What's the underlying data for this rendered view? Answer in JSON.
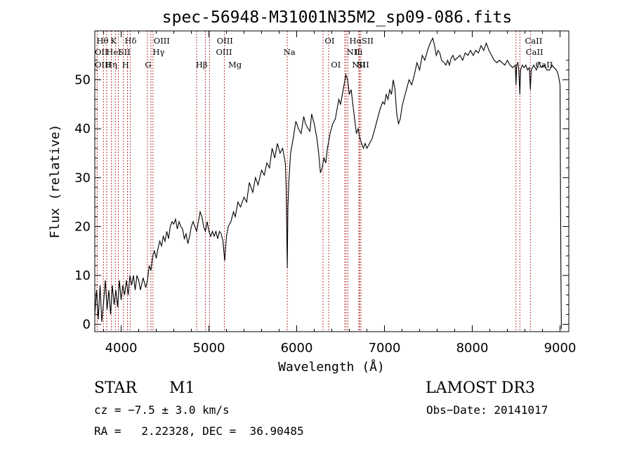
{
  "chart_data": {
    "type": "line",
    "title": "spec-56948-M31001N35M2_sp09-086.fits",
    "xlabel": "Wavelength (Å)",
    "ylabel": "Flux (relative)",
    "xlim": [
      3700,
      9100
    ],
    "ylim": [
      -1.5,
      60
    ],
    "xticks": [
      4000,
      5000,
      6000,
      7000,
      8000,
      9000
    ],
    "yticks": [
      0,
      10,
      20,
      30,
      40,
      50
    ],
    "spectrum": {
      "name": "flux",
      "points": [
        [
          3700,
          2
        ],
        [
          3720,
          7
        ],
        [
          3740,
          1
        ],
        [
          3760,
          8
        ],
        [
          3780,
          0.5
        ],
        [
          3800,
          4.5
        ],
        [
          3820,
          9
        ],
        [
          3840,
          3
        ],
        [
          3860,
          7
        ],
        [
          3880,
          2
        ],
        [
          3900,
          8
        ],
        [
          3920,
          4
        ],
        [
          3940,
          7
        ],
        [
          3960,
          3.5
        ],
        [
          3980,
          9
        ],
        [
          4000,
          5
        ],
        [
          4020,
          8
        ],
        [
          4040,
          6
        ],
        [
          4060,
          9
        ],
        [
          4080,
          6
        ],
        [
          4100,
          10
        ],
        [
          4120,
          8
        ],
        [
          4140,
          10
        ],
        [
          4160,
          7
        ],
        [
          4180,
          10
        ],
        [
          4200,
          9
        ],
        [
          4220,
          7
        ],
        [
          4250,
          9.5
        ],
        [
          4280,
          7.5
        ],
        [
          4300,
          9
        ],
        [
          4320,
          12
        ],
        [
          4340,
          11
        ],
        [
          4360,
          14
        ],
        [
          4380,
          15
        ],
        [
          4400,
          13.5
        ],
        [
          4420,
          15.5
        ],
        [
          4440,
          17
        ],
        [
          4460,
          16
        ],
        [
          4480,
          18
        ],
        [
          4500,
          17
        ],
        [
          4520,
          19
        ],
        [
          4540,
          17.5
        ],
        [
          4560,
          20
        ],
        [
          4580,
          21
        ],
        [
          4600,
          20.5
        ],
        [
          4620,
          21.5
        ],
        [
          4640,
          19.5
        ],
        [
          4660,
          21
        ],
        [
          4680,
          20
        ],
        [
          4700,
          19.5
        ],
        [
          4720,
          17.5
        ],
        [
          4740,
          18.5
        ],
        [
          4760,
          16.5
        ],
        [
          4780,
          18
        ],
        [
          4800,
          20
        ],
        [
          4820,
          21
        ],
        [
          4840,
          20
        ],
        [
          4860,
          19
        ],
        [
          4880,
          21
        ],
        [
          4900,
          23
        ],
        [
          4920,
          22
        ],
        [
          4940,
          20
        ],
        [
          4960,
          19
        ],
        [
          4980,
          21
        ],
        [
          5000,
          19
        ],
        [
          5020,
          18
        ],
        [
          5040,
          19
        ],
        [
          5060,
          18
        ],
        [
          5080,
          19
        ],
        [
          5100,
          17.5
        ],
        [
          5120,
          19
        ],
        [
          5140,
          18.5
        ],
        [
          5160,
          17
        ],
        [
          5180,
          13
        ],
        [
          5200,
          18
        ],
        [
          5220,
          20
        ],
        [
          5250,
          21
        ],
        [
          5280,
          23
        ],
        [
          5300,
          22
        ],
        [
          5330,
          25
        ],
        [
          5360,
          24
        ],
        [
          5400,
          26
        ],
        [
          5430,
          25
        ],
        [
          5460,
          29
        ],
        [
          5500,
          27
        ],
        [
          5530,
          30
        ],
        [
          5560,
          28.5
        ],
        [
          5600,
          31.5
        ],
        [
          5630,
          30.5
        ],
        [
          5660,
          33
        ],
        [
          5690,
          32
        ],
        [
          5720,
          36
        ],
        [
          5750,
          34
        ],
        [
          5780,
          37
        ],
        [
          5810,
          35
        ],
        [
          5840,
          36
        ],
        [
          5870,
          33
        ],
        [
          5880,
          28
        ],
        [
          5893,
          11.5
        ],
        [
          5900,
          24
        ],
        [
          5910,
          29
        ],
        [
          5930,
          35
        ],
        [
          5960,
          38
        ],
        [
          5990,
          41.5
        ],
        [
          6020,
          40
        ],
        [
          6050,
          39
        ],
        [
          6080,
          42.5
        ],
        [
          6100,
          41
        ],
        [
          6130,
          40
        ],
        [
          6150,
          39.5
        ],
        [
          6170,
          43
        ],
        [
          6200,
          41
        ],
        [
          6230,
          38
        ],
        [
          6250,
          35
        ],
        [
          6270,
          31
        ],
        [
          6290,
          32
        ],
        [
          6310,
          34
        ],
        [
          6330,
          33
        ],
        [
          6350,
          36
        ],
        [
          6380,
          39
        ],
        [
          6410,
          41
        ],
        [
          6440,
          42
        ],
        [
          6460,
          44
        ],
        [
          6480,
          46
        ],
        [
          6500,
          45
        ],
        [
          6520,
          47
        ],
        [
          6540,
          49
        ],
        [
          6560,
          51
        ],
        [
          6580,
          50
        ],
        [
          6600,
          47
        ],
        [
          6620,
          48
        ],
        [
          6640,
          45
        ],
        [
          6660,
          42
        ],
        [
          6680,
          39
        ],
        [
          6700,
          40
        ],
        [
          6720,
          38
        ],
        [
          6740,
          37
        ],
        [
          6760,
          36
        ],
        [
          6780,
          37
        ],
        [
          6800,
          36
        ],
        [
          6830,
          37
        ],
        [
          6860,
          38
        ],
        [
          6890,
          40
        ],
        [
          6920,
          42
        ],
        [
          6950,
          44
        ],
        [
          6980,
          45.5
        ],
        [
          7000,
          45
        ],
        [
          7020,
          47
        ],
        [
          7040,
          46
        ],
        [
          7060,
          48
        ],
        [
          7080,
          47
        ],
        [
          7100,
          50
        ],
        [
          7120,
          48
        ],
        [
          7140,
          43
        ],
        [
          7160,
          41
        ],
        [
          7180,
          42
        ],
        [
          7200,
          44.5
        ],
        [
          7220,
          46
        ],
        [
          7250,
          48
        ],
        [
          7280,
          50
        ],
        [
          7310,
          49
        ],
        [
          7340,
          51
        ],
        [
          7370,
          53.5
        ],
        [
          7400,
          52
        ],
        [
          7430,
          55
        ],
        [
          7460,
          54
        ],
        [
          7490,
          56
        ],
        [
          7520,
          57.5
        ],
        [
          7550,
          58.5
        ],
        [
          7570,
          57
        ],
        [
          7590,
          55
        ],
        [
          7610,
          56
        ],
        [
          7630,
          55.5
        ],
        [
          7650,
          54
        ],
        [
          7680,
          53.5
        ],
        [
          7700,
          53
        ],
        [
          7720,
          54
        ],
        [
          7740,
          53
        ],
        [
          7760,
          54.5
        ],
        [
          7780,
          55
        ],
        [
          7800,
          54
        ],
        [
          7830,
          54.5
        ],
        [
          7860,
          55
        ],
        [
          7890,
          54
        ],
        [
          7920,
          55.5
        ],
        [
          7950,
          55
        ],
        [
          7980,
          56
        ],
        [
          8010,
          55
        ],
        [
          8040,
          56
        ],
        [
          8070,
          55.5
        ],
        [
          8100,
          57
        ],
        [
          8130,
          56
        ],
        [
          8160,
          57.5
        ],
        [
          8190,
          56
        ],
        [
          8220,
          55
        ],
        [
          8250,
          54
        ],
        [
          8280,
          53.5
        ],
        [
          8310,
          54
        ],
        [
          8340,
          53.5
        ],
        [
          8370,
          53
        ],
        [
          8400,
          54
        ],
        [
          8430,
          53
        ],
        [
          8460,
          52.5
        ],
        [
          8490,
          53
        ],
        [
          8498,
          49
        ],
        [
          8506,
          53
        ],
        [
          8520,
          53.5
        ],
        [
          8530,
          52
        ],
        [
          8542,
          47
        ],
        [
          8550,
          52
        ],
        [
          8570,
          53
        ],
        [
          8590,
          52.5
        ],
        [
          8610,
          53
        ],
        [
          8630,
          52
        ],
        [
          8650,
          52.5
        ],
        [
          8662,
          48
        ],
        [
          8672,
          52
        ],
        [
          8700,
          53
        ],
        [
          8730,
          52
        ],
        [
          8760,
          53.5
        ],
        [
          8790,
          52.5
        ],
        [
          8820,
          53
        ],
        [
          8850,
          52
        ],
        [
          8880,
          52
        ],
        [
          8910,
          53
        ],
        [
          8930,
          52.5
        ],
        [
          8960,
          52
        ],
        [
          8980,
          51
        ],
        [
          8990,
          50
        ],
        [
          9000,
          49
        ],
        [
          9005,
          30
        ],
        [
          9010,
          10
        ],
        [
          9015,
          -1
        ]
      ]
    },
    "line_markers": {
      "top_row": [
        "Hθ",
        "K",
        "Hδ",
        "OIII",
        "OIII",
        "OI",
        "Hα",
        "SII",
        "CaII"
      ],
      "mid_row": [
        "OII",
        "HeI",
        "SII",
        "Hγ",
        "OIII",
        "Na",
        "NII",
        "Li",
        "CaII"
      ],
      "low_row": [
        "OIII",
        "Hη",
        "H",
        "G",
        "Hβ",
        "Mg",
        "OI",
        "NII",
        "SII",
        "CaII"
      ],
      "wavelengths": [
        3727,
        3798,
        3835,
        3889,
        3934,
        3969,
        4026,
        4072,
        4102,
        4300,
        4340,
        4363,
        4861,
        4959,
        5007,
        5175,
        5893,
        6300,
        6364,
        6548,
        6563,
        6583,
        6708,
        6716,
        6731,
        8498,
        8542,
        8662
      ]
    }
  },
  "info": {
    "object_class": "STAR",
    "subclass": "M1",
    "survey": "LAMOST DR3",
    "cz": "cz = −7.5 ± 3.0 km/s",
    "obs_date": "Obs−Date: 20141017",
    "coords": "RA =   2.22328, DEC =  36.90485"
  }
}
